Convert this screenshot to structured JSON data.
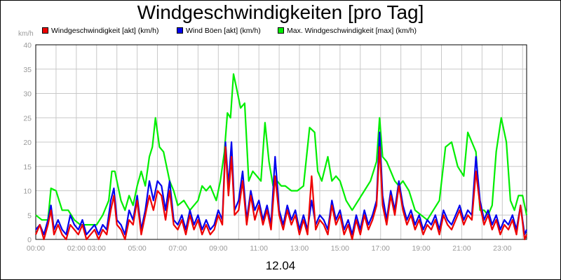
{
  "chart_data": {
    "type": "line",
    "title": "Windgeschwindigkeiten [pro Tag]",
    "ylabel": "km/h",
    "xlabel": "12.04",
    "ylim": [
      0,
      40
    ],
    "xlim": [
      0,
      24.2
    ],
    "yticks": [
      0,
      5,
      10,
      15,
      20,
      25,
      30,
      35,
      40
    ],
    "xticks": [
      {
        "x": 0,
        "label": "00:00"
      },
      {
        "x": 2,
        "label": "02:00"
      },
      {
        "x": 3,
        "label": "03:00"
      },
      {
        "x": 5,
        "label": "05:00"
      },
      {
        "x": 7,
        "label": "07:00"
      },
      {
        "x": 9,
        "label": "09:00"
      },
      {
        "x": 11,
        "label": "11:00"
      },
      {
        "x": 13,
        "label": "13:00"
      },
      {
        "x": 15,
        "label": "15:00"
      },
      {
        "x": 17,
        "label": "17:00"
      },
      {
        "x": 19,
        "label": "19:00"
      },
      {
        "x": 21,
        "label": "21:00"
      },
      {
        "x": 23,
        "label": "23:00"
      }
    ],
    "grid": true,
    "legend": "top-left",
    "series": [
      {
        "name": "Max. Windgeschwindigkeit [max] (km/h)",
        "color": "#00ee00",
        "x": [
          0,
          0.3,
          0.6,
          0.75,
          1.0,
          1.3,
          1.6,
          1.9,
          2.2,
          2.6,
          3.0,
          3.3,
          3.6,
          3.75,
          3.9,
          4.2,
          4.4,
          4.6,
          4.8,
          5.0,
          5.2,
          5.4,
          5.6,
          5.75,
          5.9,
          6.1,
          6.3,
          6.6,
          6.8,
          7.0,
          7.3,
          7.6,
          8.0,
          8.2,
          8.4,
          8.6,
          8.9,
          9.1,
          9.3,
          9.45,
          9.6,
          9.75,
          9.9,
          10.1,
          10.3,
          10.5,
          10.7,
          10.9,
          11.1,
          11.3,
          11.5,
          11.7,
          11.9,
          12.1,
          12.3,
          12.6,
          12.9,
          13.2,
          13.5,
          13.75,
          13.9,
          14.1,
          14.4,
          14.6,
          14.8,
          15.0,
          15.3,
          15.6,
          15.9,
          16.2,
          16.5,
          16.8,
          16.95,
          17.1,
          17.3,
          17.5,
          17.7,
          17.9,
          18.1,
          18.4,
          18.7,
          19.0,
          19.3,
          19.6,
          19.9,
          20.2,
          20.5,
          20.8,
          21.1,
          21.3,
          21.5,
          21.7,
          21.9,
          22.1,
          22.3,
          22.5,
          22.7,
          22.95,
          23.2,
          23.4,
          23.6,
          23.8,
          24.0,
          24.2
        ],
        "values": [
          5,
          4,
          4,
          10.5,
          10,
          6,
          6,
          4,
          3,
          3,
          3,
          5,
          8,
          14,
          14,
          8,
          6,
          9,
          7,
          11,
          14,
          11,
          17,
          19,
          25,
          19,
          18,
          12,
          10,
          7,
          8,
          6,
          8,
          11,
          10,
          11,
          8,
          12,
          18,
          26,
          25,
          34,
          31,
          27,
          28,
          12,
          14,
          13,
          12,
          24,
          16,
          11,
          12,
          11,
          11,
          10,
          10,
          11,
          23,
          22,
          14,
          12,
          17,
          12,
          13,
          12,
          8,
          6,
          8,
          10,
          12,
          16,
          25,
          17,
          16,
          14,
          12,
          11,
          12,
          10,
          6,
          5,
          4,
          6,
          8,
          19,
          20,
          15,
          13,
          22,
          20,
          18,
          6,
          6,
          5,
          7,
          18,
          25,
          20,
          8,
          6,
          9,
          9,
          5
        ]
      },
      {
        "name": "Wind Böen [akt] (km/h)",
        "color": "#0000ee",
        "x": [
          0,
          0.2,
          0.4,
          0.6,
          0.75,
          0.9,
          1.1,
          1.3,
          1.5,
          1.7,
          1.9,
          2.1,
          2.3,
          2.5,
          2.7,
          2.9,
          3.1,
          3.3,
          3.5,
          3.7,
          3.85,
          4.0,
          4.2,
          4.4,
          4.6,
          4.8,
          5.0,
          5.2,
          5.4,
          5.6,
          5.8,
          6.0,
          6.2,
          6.4,
          6.6,
          6.8,
          7.0,
          7.2,
          7.4,
          7.6,
          7.8,
          8.0,
          8.2,
          8.4,
          8.6,
          8.8,
          9.0,
          9.2,
          9.35,
          9.5,
          9.65,
          9.8,
          10.0,
          10.2,
          10.4,
          10.6,
          10.8,
          11.0,
          11.2,
          11.4,
          11.6,
          11.8,
          12.0,
          12.2,
          12.4,
          12.6,
          12.8,
          13.0,
          13.2,
          13.4,
          13.6,
          13.8,
          14.0,
          14.2,
          14.4,
          14.6,
          14.8,
          15.0,
          15.2,
          15.4,
          15.6,
          15.8,
          16.0,
          16.2,
          16.4,
          16.6,
          16.8,
          16.95,
          17.1,
          17.3,
          17.5,
          17.7,
          17.9,
          18.1,
          18.3,
          18.5,
          18.7,
          18.9,
          19.1,
          19.3,
          19.5,
          19.7,
          19.9,
          20.1,
          20.3,
          20.5,
          20.7,
          20.9,
          21.1,
          21.3,
          21.5,
          21.7,
          21.9,
          22.1,
          22.3,
          22.5,
          22.7,
          22.9,
          23.1,
          23.3,
          23.5,
          23.7,
          23.9,
          24.1,
          24.2
        ],
        "values": [
          2,
          3,
          1,
          4,
          7,
          2,
          4,
          2,
          1,
          5,
          3,
          2,
          4,
          1,
          2,
          3,
          1,
          3,
          2,
          8,
          10.5,
          4,
          3,
          1,
          6,
          4,
          9,
          2,
          6,
          12,
          8,
          12,
          11,
          6,
          12,
          4,
          3,
          5,
          2,
          6,
          3,
          5,
          2,
          4,
          2,
          3,
          6,
          4,
          20,
          11,
          20,
          6,
          8,
          14,
          4,
          10,
          6,
          8,
          4,
          7,
          3,
          17,
          6,
          3,
          7,
          4,
          6,
          2,
          5,
          2,
          8,
          3,
          5,
          4,
          2,
          8,
          4,
          6,
          2,
          4,
          1,
          5,
          2,
          6,
          3,
          5,
          8,
          22,
          9,
          4,
          10,
          6,
          12,
          7,
          4,
          6,
          3,
          5,
          2,
          4,
          3,
          5,
          2,
          6,
          4,
          3,
          5,
          7,
          4,
          6,
          5,
          17,
          8,
          4,
          6,
          3,
          5,
          2,
          4,
          3,
          5,
          2,
          7,
          1,
          2
        ],
        "points_hidden_under_red": true
      },
      {
        "name": "Windgeschwindigkeit [akt] (km/h)",
        "color": "#ee0000",
        "x": [
          0,
          0.2,
          0.4,
          0.6,
          0.75,
          0.9,
          1.1,
          1.3,
          1.5,
          1.7,
          1.9,
          2.1,
          2.3,
          2.5,
          2.7,
          2.9,
          3.1,
          3.3,
          3.5,
          3.7,
          3.85,
          4.0,
          4.2,
          4.4,
          4.6,
          4.8,
          5.0,
          5.2,
          5.4,
          5.6,
          5.8,
          6.0,
          6.2,
          6.4,
          6.6,
          6.8,
          7.0,
          7.2,
          7.4,
          7.6,
          7.8,
          8.0,
          8.2,
          8.4,
          8.6,
          8.8,
          9.0,
          9.2,
          9.35,
          9.5,
          9.65,
          9.8,
          10.0,
          10.2,
          10.4,
          10.6,
          10.8,
          11.0,
          11.2,
          11.4,
          11.6,
          11.8,
          12.0,
          12.2,
          12.4,
          12.6,
          12.8,
          13.0,
          13.2,
          13.4,
          13.6,
          13.8,
          14.0,
          14.2,
          14.4,
          14.6,
          14.8,
          15.0,
          15.2,
          15.4,
          15.6,
          15.8,
          16.0,
          16.2,
          16.4,
          16.6,
          16.8,
          16.95,
          17.1,
          17.3,
          17.5,
          17.7,
          17.9,
          18.1,
          18.3,
          18.5,
          18.7,
          18.9,
          19.1,
          19.3,
          19.5,
          19.7,
          19.9,
          20.1,
          20.3,
          20.5,
          20.7,
          20.9,
          21.1,
          21.3,
          21.5,
          21.7,
          21.9,
          22.1,
          22.3,
          22.5,
          22.7,
          22.9,
          23.1,
          23.3,
          23.5,
          23.7,
          23.9,
          24.1,
          24.2
        ],
        "values": [
          1,
          3,
          0,
          3,
          6,
          1,
          3,
          1,
          0,
          3,
          2,
          1,
          3,
          0,
          1,
          2,
          0,
          2,
          1,
          6,
          9,
          3,
          2,
          0,
          4,
          3,
          8,
          1,
          5,
          9,
          6,
          10,
          9,
          4,
          10,
          3,
          2,
          4,
          1,
          5,
          2,
          4,
          1,
          3,
          1,
          2,
          5,
          3,
          19,
          9,
          17,
          5,
          6,
          12,
          3,
          9,
          4,
          7,
          3,
          6,
          2,
          13,
          5,
          2,
          6,
          3,
          5,
          1,
          4,
          1,
          13,
          2,
          4,
          3,
          1,
          7,
          3,
          5,
          1,
          3,
          0,
          4,
          1,
          5,
          2,
          4,
          7,
          19,
          7,
          3,
          9,
          5,
          11,
          6,
          3,
          5,
          2,
          4,
          1,
          3,
          2,
          4,
          1,
          5,
          3,
          2,
          4,
          6,
          3,
          5,
          4,
          14,
          7,
          3,
          5,
          2,
          4,
          1,
          3,
          2,
          4,
          1,
          7,
          0,
          1
        ]
      }
    ]
  }
}
